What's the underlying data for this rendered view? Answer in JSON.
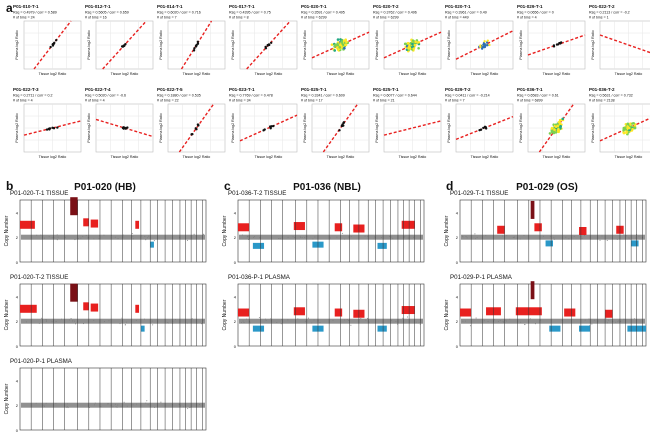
{
  "figure": {
    "panel_letters": {
      "a": "a",
      "b": "b",
      "c": "c",
      "d": "d"
    },
    "axis_labels": {
      "x": "Tissue log2 Ratio",
      "y": "Plasma log2 Ratio",
      "cn": "Copy Number"
    }
  },
  "chart_data": [
    {
      "type": "scatter",
      "panel": "a",
      "xlabel": "Tissue log2 Ratio",
      "ylabel": "Plasma log2 Ratio",
      "grid": true,
      "subplots": [
        {
          "title": "P01-010-T-1",
          "stats_line1": "Rsq = 0.4979 / corr = 0.589",
          "stats_line2": "# of bins = 24",
          "slope": 1.3,
          "density": "sparse"
        },
        {
          "title": "P01-012-T-1",
          "stats_line1": "Rsq = 0.5605 / corr = 0.659",
          "stats_line2": "# of bins = 16",
          "slope": 1.1,
          "density": "sparse"
        },
        {
          "title": "P01-014-T-1",
          "stats_line1": "Rsq = 0.6020 / corr = 0.716",
          "stats_line2": "# of bins = 7",
          "slope": 1.6,
          "density": "sparse"
        },
        {
          "title": "P01-017-T-1",
          "stats_line1": "Rsq = 0.4395 / corr = 0.75",
          "stats_line2": "# of bins = 8",
          "slope": 1.1,
          "density": "sparse"
        },
        {
          "title": "P01-020-T-1",
          "stats_line1": "Rsq = 0.3591 / corr = 0.495",
          "stats_line2": "# of bins = 6299",
          "slope": 0.45,
          "density": "dense"
        },
        {
          "title": "P01-020-T-2",
          "stats_line1": "Rsq = 0.3762 / corr = 0.496",
          "stats_line2": "# of bins = 6299",
          "slope": 0.45,
          "density": "dense"
        },
        {
          "title": "P01-020-T-1",
          "stats_line1": "Rsq = 0.3961 / corr = 0.49",
          "stats_line2": "# of bins = 449",
          "slope": 0.5,
          "density": "medium"
        },
        {
          "title": "P01-029-T-1",
          "stats_line1": "Rsq = 0.0656 / corr = 0",
          "stats_line2": "# of bins = 4",
          "slope": 0.35,
          "density": "sparse"
        },
        {
          "title": "P01-022-T-2",
          "stats_line1": "Rsq = 0.2113 / corr = -0.2",
          "stats_line2": "# of bins = 1",
          "slope": -0.35,
          "density": "none"
        },
        {
          "title": "P01-022-T-3",
          "stats_line1": "Rsq = 0.2711 / corr = 0.2",
          "stats_line2": "# of bins = 4",
          "slope": 0.25,
          "density": "sparse"
        },
        {
          "title": "P01-022-T-4",
          "stats_line1": "Rsq = 0.5020 / corr = -0.6",
          "stats_line2": "# of bins = 4",
          "slope": -0.3,
          "density": "sparse"
        },
        {
          "title": "P01-022-T-5",
          "stats_line1": "Rsq = 0.1880 / corr = 0.535",
          "stats_line2": "# of bins = 22",
          "slope": 1.4,
          "density": "sparse"
        },
        {
          "title": "P01-023-T-1",
          "stats_line1": "Rsq = 0.7769 / corr = 0.478",
          "stats_line2": "# of bins = 34",
          "slope": 0.45,
          "density": "sparse"
        },
        {
          "title": "P01-025-T-1",
          "stats_line1": "Rsq = 0.3341 / corr = 0.609",
          "stats_line2": "# of bins = 17",
          "slope": 1.4,
          "density": "sparse"
        },
        {
          "title": "P01-025-T-1",
          "stats_line1": "Rsq = 0.6077 / corr = 0.644",
          "stats_line2": "# of bins = 21",
          "slope": 0.25,
          "density": "none"
        },
        {
          "title": "P01-029-T-2",
          "stats_line1": "Rsq = 0.0411 / corr = -0.214",
          "stats_line2": "# of bins = 7",
          "slope": 0.4,
          "density": "sparse"
        },
        {
          "title": "P01-036-T-1",
          "stats_line1": "Rsq = 0.6583 / corr = 0.61",
          "stats_line2": "# of bins = 6899",
          "slope": 1.4,
          "density": "dense"
        },
        {
          "title": "P01-036-T-2",
          "stats_line1": "Rsq = 0.5631 / corr = 0.732",
          "stats_line2": "# of bins = 2138",
          "slope": 0.45,
          "density": "dense"
        }
      ]
    },
    {
      "type": "scatter",
      "panel": "b",
      "title": "P01-020 (HB)",
      "ylabel": "Copy Number",
      "colors": {
        "gain": "#e8201f",
        "loss": "#2a98c8",
        "neutral": "#7d7d7d"
      },
      "tracks": [
        {
          "label": "P01-020-T-1 TISSUE",
          "baseline": 2,
          "gains": [
            [
              0.0,
              0.08,
              3.0
            ],
            [
              0.34,
              0.37,
              3.2
            ],
            [
              0.38,
              0.42,
              3.1
            ],
            [
              0.62,
              0.64,
              3.0
            ]
          ],
          "amplifications": [
            [
              0.27,
              0.31,
              4.5
            ]
          ],
          "losses": [
            [
              0.7,
              0.72,
              1.4
            ]
          ]
        },
        {
          "label": "P01-020-T-2 TISSUE",
          "baseline": 2,
          "gains": [
            [
              0.0,
              0.09,
              3.0
            ],
            [
              0.34,
              0.37,
              3.2
            ],
            [
              0.38,
              0.42,
              3.1
            ],
            [
              0.62,
              0.64,
              3.0
            ]
          ],
          "amplifications": [
            [
              0.27,
              0.31,
              4.3
            ]
          ],
          "losses": [
            [
              0.65,
              0.67,
              1.4
            ]
          ]
        },
        {
          "label": "P01-020-P-1 PLASMA",
          "baseline": 2,
          "gains": [],
          "amplifications": [],
          "losses": []
        }
      ]
    },
    {
      "type": "scatter",
      "panel": "c",
      "title": "P01-036 (NBL)",
      "ylabel": "Copy Number",
      "colors": {
        "gain": "#e8201f",
        "loss": "#2a98c8",
        "neutral": "#7d7d7d"
      },
      "tracks": [
        {
          "label": "P01-036-T-2 TISSUE",
          "baseline": 2,
          "gains": [
            [
              0.0,
              0.06,
              2.8
            ],
            [
              0.3,
              0.36,
              2.9
            ],
            [
              0.52,
              0.56,
              2.8
            ],
            [
              0.62,
              0.68,
              2.7
            ],
            [
              0.88,
              0.95,
              3.0
            ]
          ],
          "amplifications": [],
          "losses": [
            [
              0.08,
              0.14,
              1.3
            ],
            [
              0.4,
              0.46,
              1.4
            ],
            [
              0.75,
              0.8,
              1.3
            ]
          ]
        },
        {
          "label": "P01-036-P-1 PLASMA",
          "baseline": 2,
          "gains": [
            [
              0.0,
              0.06,
              2.7
            ],
            [
              0.3,
              0.36,
              2.8
            ],
            [
              0.52,
              0.56,
              2.7
            ],
            [
              0.62,
              0.68,
              2.6
            ],
            [
              0.88,
              0.95,
              2.9
            ]
          ],
          "amplifications": [],
          "losses": [
            [
              0.08,
              0.14,
              1.4
            ],
            [
              0.4,
              0.46,
              1.4
            ],
            [
              0.75,
              0.8,
              1.4
            ]
          ]
        }
      ]
    },
    {
      "type": "scatter",
      "panel": "d",
      "title": "P01-029 (OS)",
      "ylabel": "Copy Number",
      "colors": {
        "gain": "#e8201f",
        "loss": "#2a98c8",
        "neutral": "#7d7d7d"
      },
      "tracks": [
        {
          "label": "P01-029-T-1 TISSUE",
          "baseline": 2,
          "gains": [
            [
              0.2,
              0.24,
              2.6
            ],
            [
              0.4,
              0.44,
              2.8
            ],
            [
              0.64,
              0.68,
              2.5
            ],
            [
              0.84,
              0.88,
              2.6
            ]
          ],
          "amplifications": [
            [
              0.38,
              0.4,
              4.2
            ]
          ],
          "losses": [
            [
              0.46,
              0.5,
              1.5
            ],
            [
              0.92,
              0.96,
              1.5
            ]
          ]
        },
        {
          "label": "P01-029-P-1 PLASMA",
          "baseline": 2,
          "gains": [
            [
              0.0,
              0.06,
              2.7
            ],
            [
              0.14,
              0.22,
              2.8
            ],
            [
              0.3,
              0.44,
              2.8
            ],
            [
              0.56,
              0.62,
              2.7
            ],
            [
              0.78,
              0.82,
              2.6
            ]
          ],
          "amplifications": [
            [
              0.38,
              0.4,
              4.5
            ]
          ],
          "losses": [
            [
              0.48,
              0.54,
              1.4
            ],
            [
              0.64,
              0.7,
              1.4
            ],
            [
              0.9,
              1.0,
              1.4
            ]
          ]
        }
      ]
    }
  ]
}
